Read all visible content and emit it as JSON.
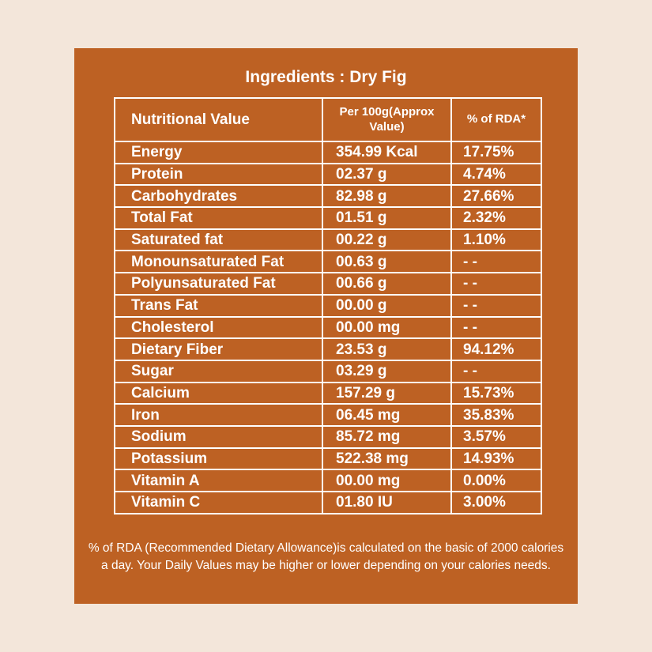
{
  "title": "Ingredients : Dry Fig",
  "table": {
    "headers": [
      "Nutritional Value",
      "Per 100g(Approx Value)",
      "% of RDA*"
    ],
    "rows": [
      [
        "Energy",
        "354.99 Kcal",
        "17.75%"
      ],
      [
        "Protein",
        "02.37 g",
        "4.74%"
      ],
      [
        "Carbohydrates",
        "82.98 g",
        "27.66%"
      ],
      [
        "Total Fat",
        "01.51 g",
        "2.32%"
      ],
      [
        "Saturated fat",
        "00.22 g",
        "1.10%"
      ],
      [
        "Monounsaturated Fat",
        "00.63 g",
        "- -"
      ],
      [
        "Polyunsaturated Fat",
        "00.66 g",
        "- -"
      ],
      [
        "Trans Fat",
        "00.00 g",
        "- -"
      ],
      [
        "Cholesterol",
        "00.00 mg",
        "- -"
      ],
      [
        "Dietary Fiber",
        "23.53 g",
        "94.12%"
      ],
      [
        "Sugar",
        "03.29 g",
        "- -"
      ],
      [
        "Calcium",
        "157.29 g",
        "15.73%"
      ],
      [
        "Iron",
        "06.45 mg",
        "35.83%"
      ],
      [
        "Sodium",
        "85.72 mg",
        "3.57%"
      ],
      [
        "Potassium",
        "522.38 mg",
        "14.93%"
      ],
      [
        "Vitamin A",
        "00.00 mg",
        "0.00%"
      ],
      [
        "Vitamin C",
        "01.80 IU",
        "3.00%"
      ]
    ]
  },
  "footnote": "% of RDA (Recommended Dietary Allowance)is calculated on the basic of 2000 calories a day. Your Daily Values may be higher or lower depending on your calories needs.",
  "colors": {
    "background": "#f3e6da",
    "panel": "#bd6123",
    "text": "#ffffff"
  }
}
